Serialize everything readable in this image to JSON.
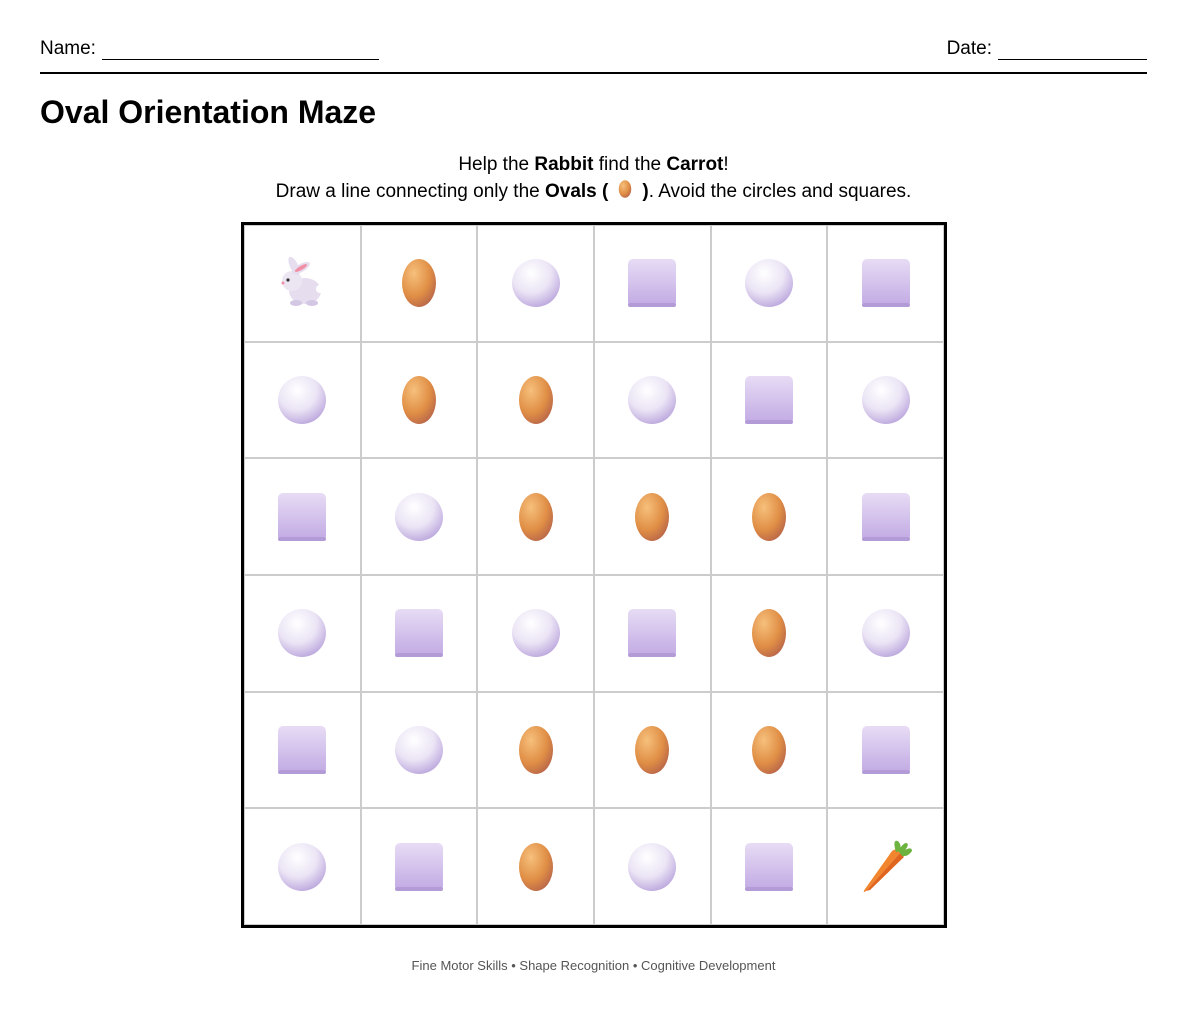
{
  "header": {
    "name_label": "Name:",
    "date_label": "Date:"
  },
  "title": "Oval Orientation Maze",
  "instructions": [
    [
      {
        "text": "Help the "
      },
      {
        "text": "Rabbit",
        "bold": true
      },
      {
        "text": " find the "
      },
      {
        "text": "Carrot",
        "bold": true
      },
      {
        "text": "!"
      }
    ],
    [
      {
        "text": "Draw a line connecting only the "
      },
      {
        "text": "Ovals (",
        "bold": true
      },
      {
        "icon": "oval"
      },
      {
        "text": ")",
        "bold": true
      },
      {
        "text": ". Avoid the circles and squares."
      }
    ]
  ],
  "maze": {
    "rows": [
      [
        "rabbit",
        "oval",
        "circle",
        "square",
        "circle",
        "square"
      ],
      [
        "circle",
        "oval",
        "oval",
        "circle",
        "square",
        "circle"
      ],
      [
        "square",
        "circle",
        "oval",
        "oval",
        "oval",
        "square"
      ],
      [
        "circle",
        "square",
        "circle",
        "square",
        "oval",
        "circle"
      ],
      [
        "square",
        "circle",
        "oval",
        "oval",
        "oval",
        "square"
      ],
      [
        "circle",
        "square",
        "oval",
        "circle",
        "square",
        "carrot"
      ]
    ]
  },
  "footer": "Fine Motor Skills • Shape Recognition • Cognitive Development"
}
